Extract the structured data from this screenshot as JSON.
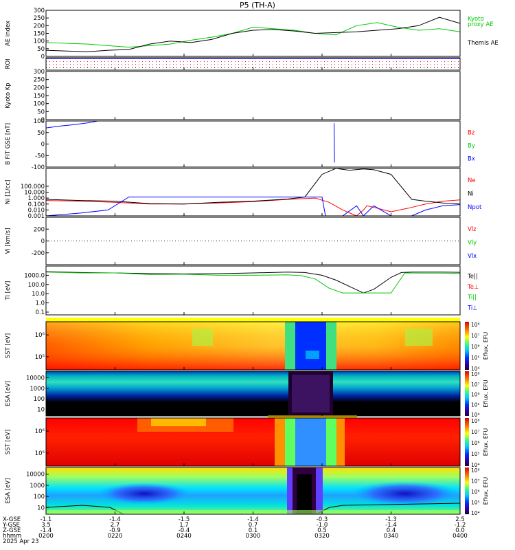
{
  "title": "P5 (TH-A)",
  "date": "2025 Apr 23",
  "colors": {
    "green": "#00c800",
    "red": "#ff0000",
    "blue": "#0000ff",
    "black": "#000000"
  },
  "colorbar_label": "Eflux, EFU",
  "bottom_axis": {
    "row_labels": [
      "X-GSE",
      "Y-GSE",
      "Z-GSE",
      "hhmm"
    ],
    "ticks": [
      {
        "time": "0200",
        "x": "-1.1",
        "y": "3.5",
        "z": "-1.4"
      },
      {
        "time": "0220",
        "x": "-1.4",
        "y": "2.7",
        "z": "-0.9"
      },
      {
        "time": "0240",
        "x": "-1.5",
        "y": "1.7",
        "z": "-0.4"
      },
      {
        "time": "0300",
        "x": "-1.4",
        "y": "0.7",
        "z": "0.1"
      },
      {
        "time": "0320",
        "x": "-0.3",
        "y": "-1.0",
        "z": "0.5"
      },
      {
        "time": "0340",
        "x": "-1.3",
        "y": "-1.4",
        "z": "0.4"
      },
      {
        "time": "0400",
        "x": "2.5",
        "y": "-1.2",
        "z": "0.0"
      }
    ]
  },
  "chart_data": [
    {
      "type": "line",
      "panel": "ae",
      "ylabel": "AE index",
      "ylim": [
        0,
        300
      ],
      "yticks": [
        "0",
        "50",
        "100",
        "150",
        "200",
        "250",
        "300"
      ],
      "legend": [
        "Kyoto",
        "proxy AE",
        "Themis AE"
      ],
      "series": [
        {
          "name": "Kyoto proxy AE",
          "color": "#00c800",
          "x": [
            0,
            6,
            12,
            18,
            24,
            30,
            36,
            42,
            48,
            54,
            60,
            66,
            72,
            78,
            84,
            90,
            96,
            102,
            108,
            114,
            120
          ],
          "y": [
            90,
            85,
            80,
            70,
            60,
            70,
            80,
            105,
            125,
            150,
            190,
            180,
            170,
            150,
            140,
            200,
            220,
            190,
            170,
            180,
            160
          ]
        },
        {
          "name": "Themis AE",
          "color": "#000000",
          "x": [
            0,
            6,
            12,
            18,
            24,
            30,
            36,
            42,
            48,
            54,
            60,
            66,
            72,
            78,
            84,
            90,
            96,
            102,
            108,
            114,
            120
          ],
          "y": [
            40,
            35,
            30,
            40,
            45,
            80,
            100,
            90,
            110,
            150,
            170,
            175,
            165,
            150,
            155,
            160,
            170,
            180,
            200,
            255,
            215
          ]
        }
      ]
    },
    {
      "type": "line",
      "panel": "roi",
      "ylabel": "ROI",
      "series": []
    },
    {
      "type": "line",
      "panel": "kp",
      "ylabel": "Kyoto Kp",
      "ylim": [
        0,
        300
      ],
      "yticks": [
        "0",
        "50",
        "100",
        "150",
        "200",
        "250",
        "300"
      ],
      "series": []
    },
    {
      "type": "line",
      "panel": "bfield",
      "ylabel": "B FIT GSE [nT]",
      "ylim": [
        -100,
        100
      ],
      "yticks": [
        "-100",
        "-50",
        "0",
        "50",
        "100"
      ],
      "legend": [
        "Bz",
        "By",
        "Bx"
      ],
      "series": [
        {
          "name": "Bx",
          "color": "#0000ff",
          "x": [
            0,
            4,
            8,
            12,
            15
          ],
          "y": [
            70,
            78,
            84,
            92,
            100
          ]
        },
        {
          "name": "Bx",
          "color": "#0000ff",
          "x": [
            83.5,
            83.6
          ],
          "y": [
            90,
            -80
          ]
        }
      ]
    },
    {
      "type": "line",
      "panel": "density",
      "ylabel": "Ni [1/cc]",
      "yscale": "log",
      "ylim": [
        0.001,
        100000
      ],
      "yticks": [
        "0.001",
        "0.010",
        "0.100",
        "1.000",
        "10.000",
        "100.000"
      ],
      "legend": [
        "Ne",
        "Ni",
        "Npot"
      ],
      "series": [
        {
          "name": "Ne",
          "color": "#ff0000",
          "x": [
            0,
            10,
            20,
            30,
            40,
            50,
            60,
            70,
            78,
            82,
            86,
            90,
            92,
            93,
            96,
            100,
            105,
            110,
            115,
            120
          ],
          "y": [
            0.4,
            0.3,
            0.2,
            0.1,
            0.1,
            0.15,
            0.25,
            0.6,
            1.0,
            0.2,
            0.01,
            0.001,
            0.01,
            0.05,
            0.02,
            0.005,
            0.02,
            0.1,
            0.3,
            0.5
          ]
        },
        {
          "name": "Ni",
          "color": "#000000",
          "x": [
            0,
            10,
            20,
            30,
            40,
            50,
            60,
            70,
            75,
            80,
            84,
            88,
            92,
            95,
            100,
            106,
            110,
            115,
            120
          ],
          "y": [
            0.6,
            0.4,
            0.3,
            0.12,
            0.1,
            0.2,
            0.3,
            0.7,
            1.5,
            10000,
            100000,
            50000,
            80000,
            60000,
            10000,
            0.6,
            0.3,
            0.15,
            0.1
          ]
        },
        {
          "name": "Npot",
          "color": "#0000ff",
          "x": [
            0,
            10,
            18,
            24,
            80,
            81,
            86,
            90,
            92,
            95,
            100,
            106,
            110,
            115,
            120
          ],
          "y": [
            0.001,
            0.003,
            0.01,
            1.5,
            1.5,
            0.001,
            0.001,
            0.05,
            0.001,
            0.05,
            0.001,
            0.001,
            0.01,
            0.05,
            0.08
          ]
        }
      ]
    },
    {
      "type": "line",
      "panel": "velocity",
      "ylabel": "Vi [km/s]",
      "ylim": [
        -400,
        400
      ],
      "yticks": [
        "-200",
        "0",
        "200"
      ],
      "legend": [
        "Vlz",
        "Vly",
        "Vlx"
      ],
      "series": []
    },
    {
      "type": "line",
      "panel": "temperature",
      "ylabel": "Ti [eV]",
      "yscale": "log",
      "ylim": [
        0.05,
        10000
      ],
      "yticks": [
        "0.1",
        "1.0",
        "10.0",
        "100.0",
        "1000.0"
      ],
      "legend": [
        "Te||",
        "Te⊥",
        "Ti||",
        "Ti⊥"
      ],
      "series": [
        {
          "name": "Te||",
          "color": "#000000",
          "x": [
            0,
            10,
            20,
            30,
            40,
            50,
            60,
            70,
            75,
            80,
            84,
            88,
            92,
            95,
            100,
            103,
            106,
            110,
            115,
            120
          ],
          "y": [
            2500,
            2000,
            1800,
            1500,
            1400,
            1500,
            1800,
            2200,
            2000,
            1000,
            300,
            60,
            12,
            30,
            600,
            2000,
            2200,
            2200,
            2200,
            2100
          ]
        },
        {
          "name": "Ti||",
          "color": "#00c800",
          "x": [
            0,
            10,
            20,
            30,
            40,
            50,
            60,
            70,
            74,
            78,
            82,
            86,
            92,
            96,
            100,
            104,
            110,
            115,
            120
          ],
          "y": [
            2200,
            1800,
            1800,
            1200,
            1300,
            1000,
            1000,
            1100,
            900,
            400,
            40,
            12,
            12,
            12,
            12,
            1800,
            1700,
            1700,
            1600
          ]
        }
      ]
    },
    {
      "type": "heatmap",
      "panel": "sst_full_ion",
      "ylabel": "SST [eV]",
      "yticks": [
        "10⁵",
        "10⁶"
      ],
      "colorbar_ticks": [
        "10⁴",
        "10⁵",
        "10⁶",
        "10⁷",
        "10⁸"
      ]
    },
    {
      "type": "heatmap",
      "panel": "esa_full_ion",
      "ylabel": "ESA [eV]",
      "yticks": [
        "10",
        "100",
        "1000",
        "10000"
      ],
      "colorbar_ticks": [
        "10⁴",
        "10⁵",
        "10⁶",
        "10⁷",
        "10⁸"
      ]
    },
    {
      "type": "heatmap",
      "panel": "sst_reduced_ion",
      "ylabel": "SST [eV]",
      "yticks": [
        "10⁵",
        "10⁶"
      ],
      "colorbar_ticks": [
        "10⁴",
        "10⁵",
        "10⁶",
        "10⁷",
        "10⁸"
      ]
    },
    {
      "type": "heatmap",
      "panel": "esa_reduced_ion",
      "ylabel": "ESA [eV]",
      "yticks": [
        "10",
        "100",
        "1000",
        "10000"
      ],
      "colorbar_ticks": [
        "10⁴",
        "10⁵",
        "10⁶",
        "10⁷",
        "10⁸"
      ]
    }
  ]
}
